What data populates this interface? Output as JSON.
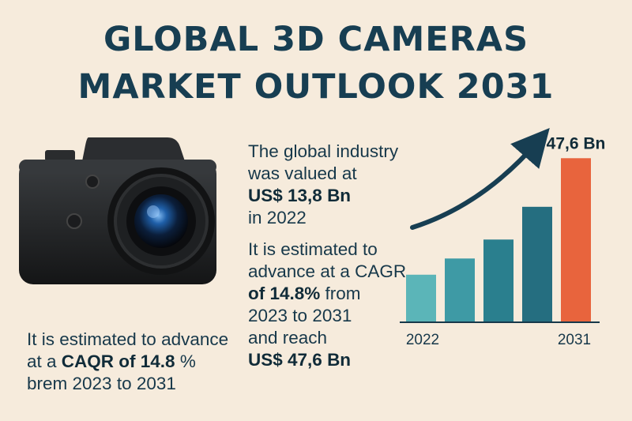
{
  "title": {
    "line1": "GLOBAL 3D CAMERAS",
    "line2": "MARKET OUTLOOK 2031"
  },
  "middle_text": {
    "l1": "The global industry",
    "l2": "was valued at",
    "l3": "US$ 13,8 Bn",
    "l4": "in 2022",
    "l5": "It is estimated to",
    "l6": "advance at a CAGR",
    "l7_bold": "of 14.8%",
    "l7_rest": " from",
    "l8": "2023 to 2031",
    "l9": "and reach",
    "l10": "US$ 47,6 Bn"
  },
  "left_text": {
    "l1": "It is estimated to advance",
    "l2_pre": "at a ",
    "l2_bold": "CAQR of 14.8",
    "l2_post": " %",
    "l3": "brem 2023 to 2031"
  },
  "colors": {
    "bars": [
      "#5bb5b8",
      "#3e9aa5",
      "#2a7f8e",
      "#256e80",
      "#e8643d"
    ],
    "arrow": "#173e52"
  },
  "chart_data": {
    "type": "bar",
    "categories": [
      "2022",
      "",
      "",
      "",
      "2031"
    ],
    "values": [
      13.8,
      18.5,
      24,
      33.5,
      47.6
    ],
    "value_label_last": "47,6 Bn",
    "xlabel": "",
    "ylabel": "",
    "ylim": [
      0,
      55
    ],
    "grid": false,
    "icons": [
      "trend-up-arrow"
    ]
  }
}
